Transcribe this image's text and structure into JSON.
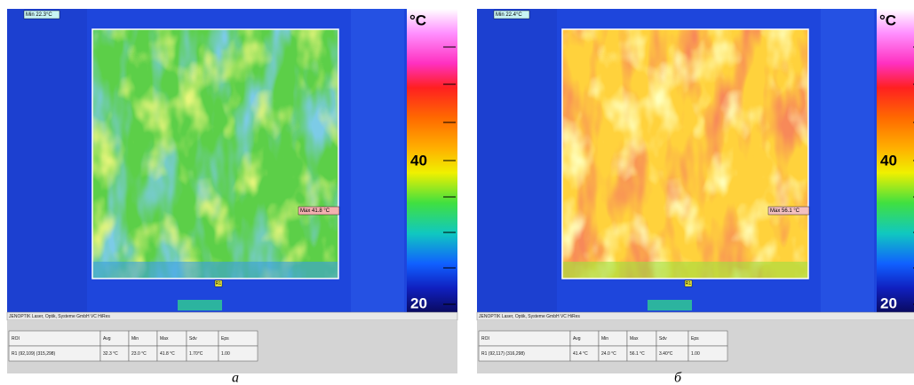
{
  "panels": [
    {
      "min_label": "Min 22.3°C",
      "max_label": "Max 41.8 °C",
      "roi_marker": "R1",
      "scale": {
        "unit": "°C",
        "labels": [
          "40",
          "20"
        ]
      },
      "footer": "JENOPTIK Laser, Optik, Systeme GmbH   VC HiRes",
      "table": {
        "header": [
          "ROI",
          "Avg",
          "Min",
          "Max",
          "Sdv",
          "Eps"
        ],
        "rows": [
          [
            "R1 (92,109) (315,298)",
            "32.3 °C",
            "23.0 °C",
            "41.8 °C",
            "1.70°C",
            "1.00"
          ]
        ]
      },
      "caption": "a"
    },
    {
      "min_label": "Min 22.4°C",
      "max_label": "Max 56.1 °C",
      "roi_marker": "R1",
      "scale": {
        "unit": "°C",
        "labels": [
          "40",
          "20"
        ]
      },
      "footer": "JENOPTIK Laser, Optik, Systeme GmbH   VC HiRes",
      "table": {
        "header": [
          "ROI",
          "Avg",
          "Min",
          "Max",
          "Sdv",
          "Eps"
        ],
        "rows": [
          [
            "R1 (92,117) (316,298)",
            "41.4 °C",
            "24.0 °C",
            "56.1 °C",
            "3.40°C",
            "1.00"
          ]
        ]
      },
      "caption": "б"
    }
  ]
}
